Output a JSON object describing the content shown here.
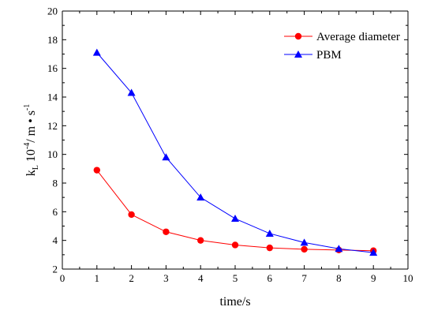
{
  "chart_data": {
    "type": "line",
    "xlabel": "time/s",
    "ylabel": {
      "prefix": "k",
      "prefix_sub": "L",
      "mid": " 10",
      "exp": "-4",
      "unit": "/ m • s",
      "unit_exp": "-1"
    },
    "xlim": [
      0,
      10
    ],
    "ylim": [
      2,
      20
    ],
    "xticks": [
      0,
      1,
      2,
      3,
      4,
      5,
      6,
      7,
      8,
      9,
      10
    ],
    "yticks": [
      2,
      4,
      6,
      8,
      10,
      12,
      14,
      16,
      18,
      20
    ],
    "grid": false,
    "legend_position": "top-right",
    "series": [
      {
        "name": "Average diameter",
        "color": "#ff0000",
        "marker": "circle",
        "x": [
          1,
          2,
          3,
          4,
          5,
          6,
          7,
          8,
          9
        ],
        "y": [
          8.9,
          5.8,
          4.6,
          4.0,
          3.68,
          3.48,
          3.38,
          3.33,
          3.28
        ]
      },
      {
        "name": "PBM",
        "color": "#0000ff",
        "marker": "triangle",
        "x": [
          1,
          2,
          3,
          4,
          5,
          6,
          7,
          8,
          9
        ],
        "y": [
          17.1,
          14.3,
          9.8,
          7.0,
          5.52,
          4.48,
          3.85,
          3.42,
          3.15
        ]
      }
    ]
  }
}
